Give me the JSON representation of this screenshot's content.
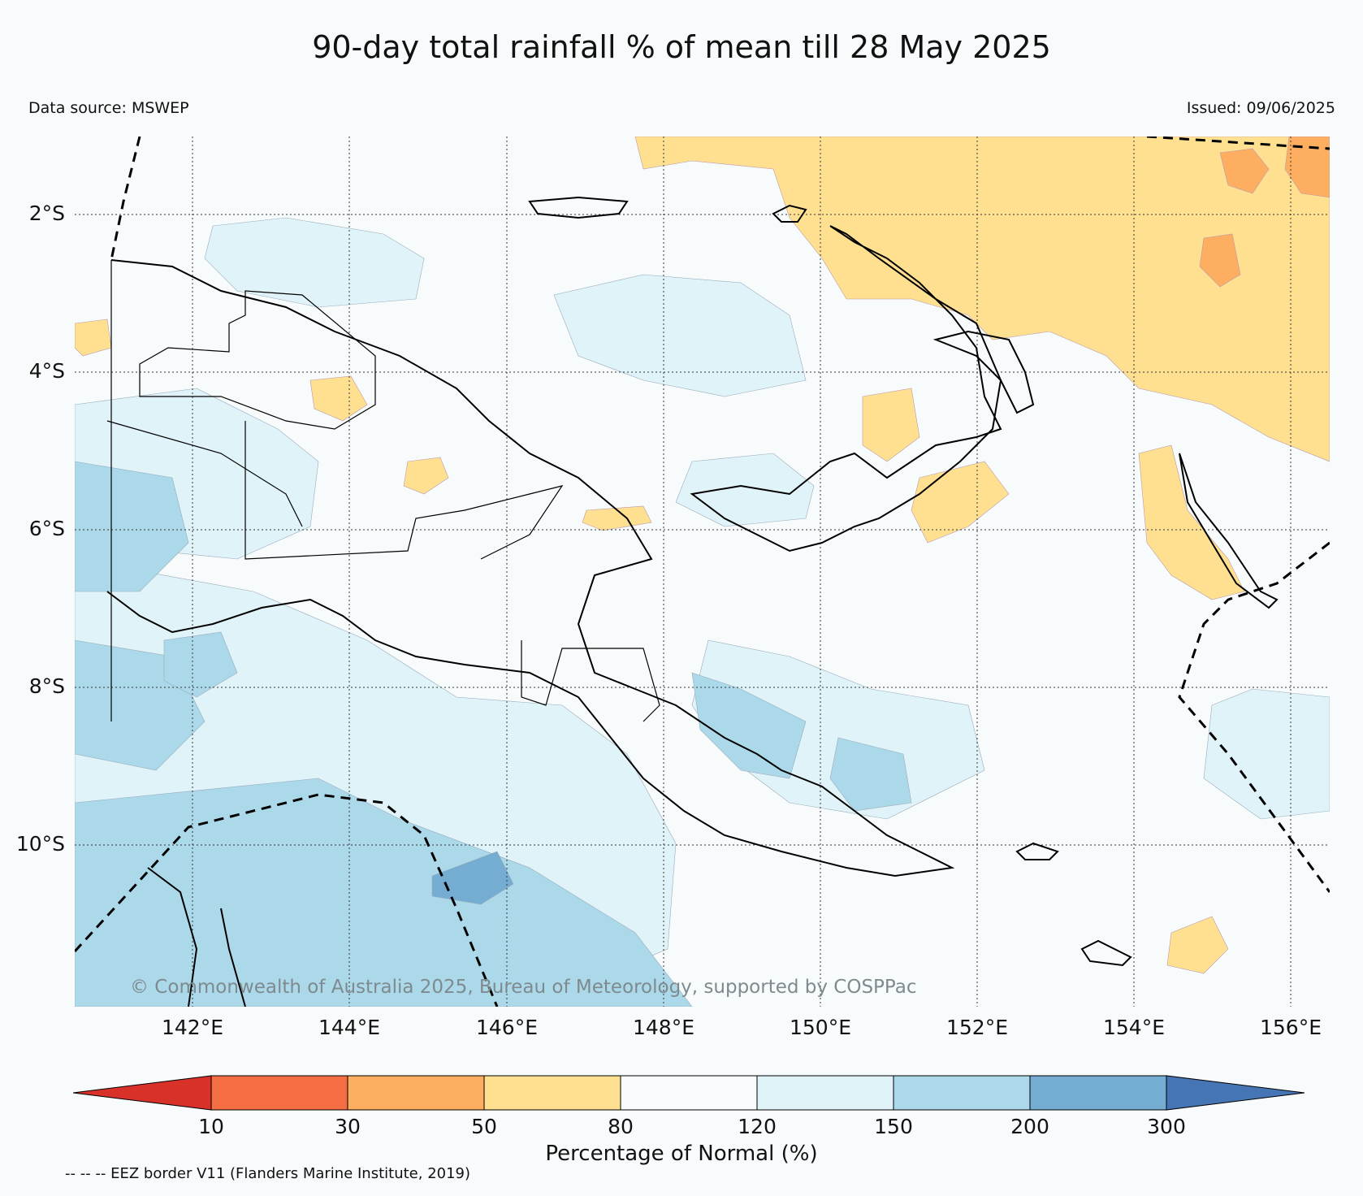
{
  "header": {
    "title": "90-day total rainfall % of mean till 28 May 2025",
    "source": "Data source: MSWEP",
    "issued": "Issued: 09/06/2025"
  },
  "map": {
    "lat_labels": [
      "2°S",
      "4°S",
      "6°S",
      "8°S",
      "10°S"
    ],
    "lon_labels": [
      "142°E",
      "144°E",
      "146°E",
      "148°E",
      "150°E",
      "152°E",
      "154°E",
      "156°E"
    ],
    "copyright": "© Commonwealth of Australia 2025, Bureau of Meteorology, supported by COSPPac"
  },
  "colorbar": {
    "ticks": [
      "10",
      "30",
      "50",
      "80",
      "120",
      "150",
      "200",
      "300"
    ],
    "title": "Percentage of Normal (%)",
    "colors": [
      "#d7312a",
      "#f46d43",
      "#fdae61",
      "#fee090",
      "#f7fbfc",
      "#e0f3f8",
      "#abd9e9",
      "#74add1",
      "#4575b4"
    ]
  },
  "footer": {
    "eez_note": "-- -- -- EEZ border V11 (Flanders Marine Institute, 2019)"
  }
}
